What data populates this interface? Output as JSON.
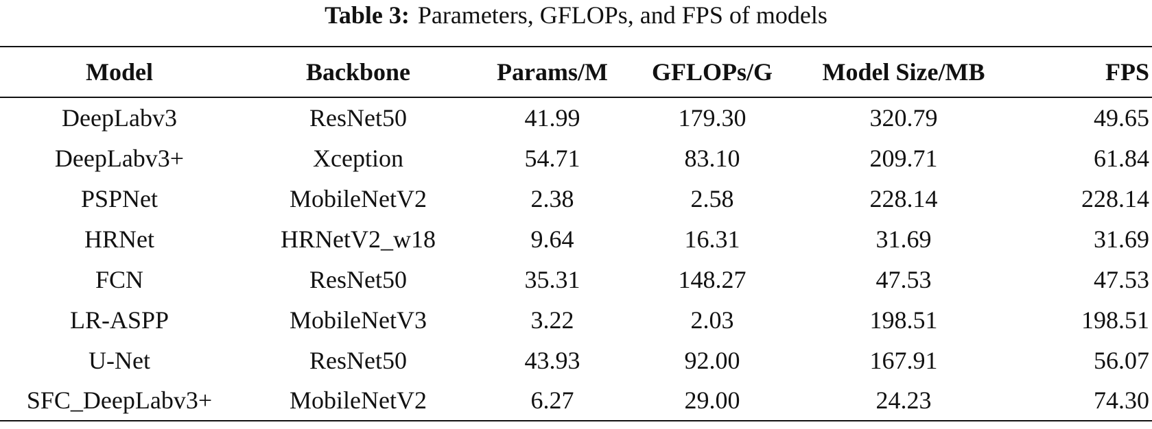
{
  "caption": {
    "label": "Table 3:",
    "text": "Parameters, GFLOPs, and FPS of models"
  },
  "table": {
    "headers": [
      "Model",
      "Backbone",
      "Params/M",
      "GFLOPs/G",
      "Model Size/MB",
      "FPS"
    ],
    "rows": [
      [
        "DeepLabv3",
        "ResNet50",
        "41.99",
        "179.30",
        "320.79",
        "49.65"
      ],
      [
        "DeepLabv3+",
        "Xception",
        "54.71",
        "83.10",
        "209.71",
        "61.84"
      ],
      [
        "PSPNet",
        "MobileNetV2",
        "2.38",
        "2.58",
        "228.14",
        "228.14"
      ],
      [
        "HRNet",
        "HRNetV2_w18",
        "9.64",
        "16.31",
        "31.69",
        "31.69"
      ],
      [
        "FCN",
        "ResNet50",
        "35.31",
        "148.27",
        "47.53",
        "47.53"
      ],
      [
        "LR-ASPP",
        "MobileNetV3",
        "3.22",
        "2.03",
        "198.51",
        "198.51"
      ],
      [
        "U-Net",
        "ResNet50",
        "43.93",
        "92.00",
        "167.91",
        "56.07"
      ],
      [
        "SFC_DeepLabv3+",
        "MobileNetV2",
        "6.27",
        "29.00",
        "24.23",
        "74.30"
      ]
    ]
  }
}
